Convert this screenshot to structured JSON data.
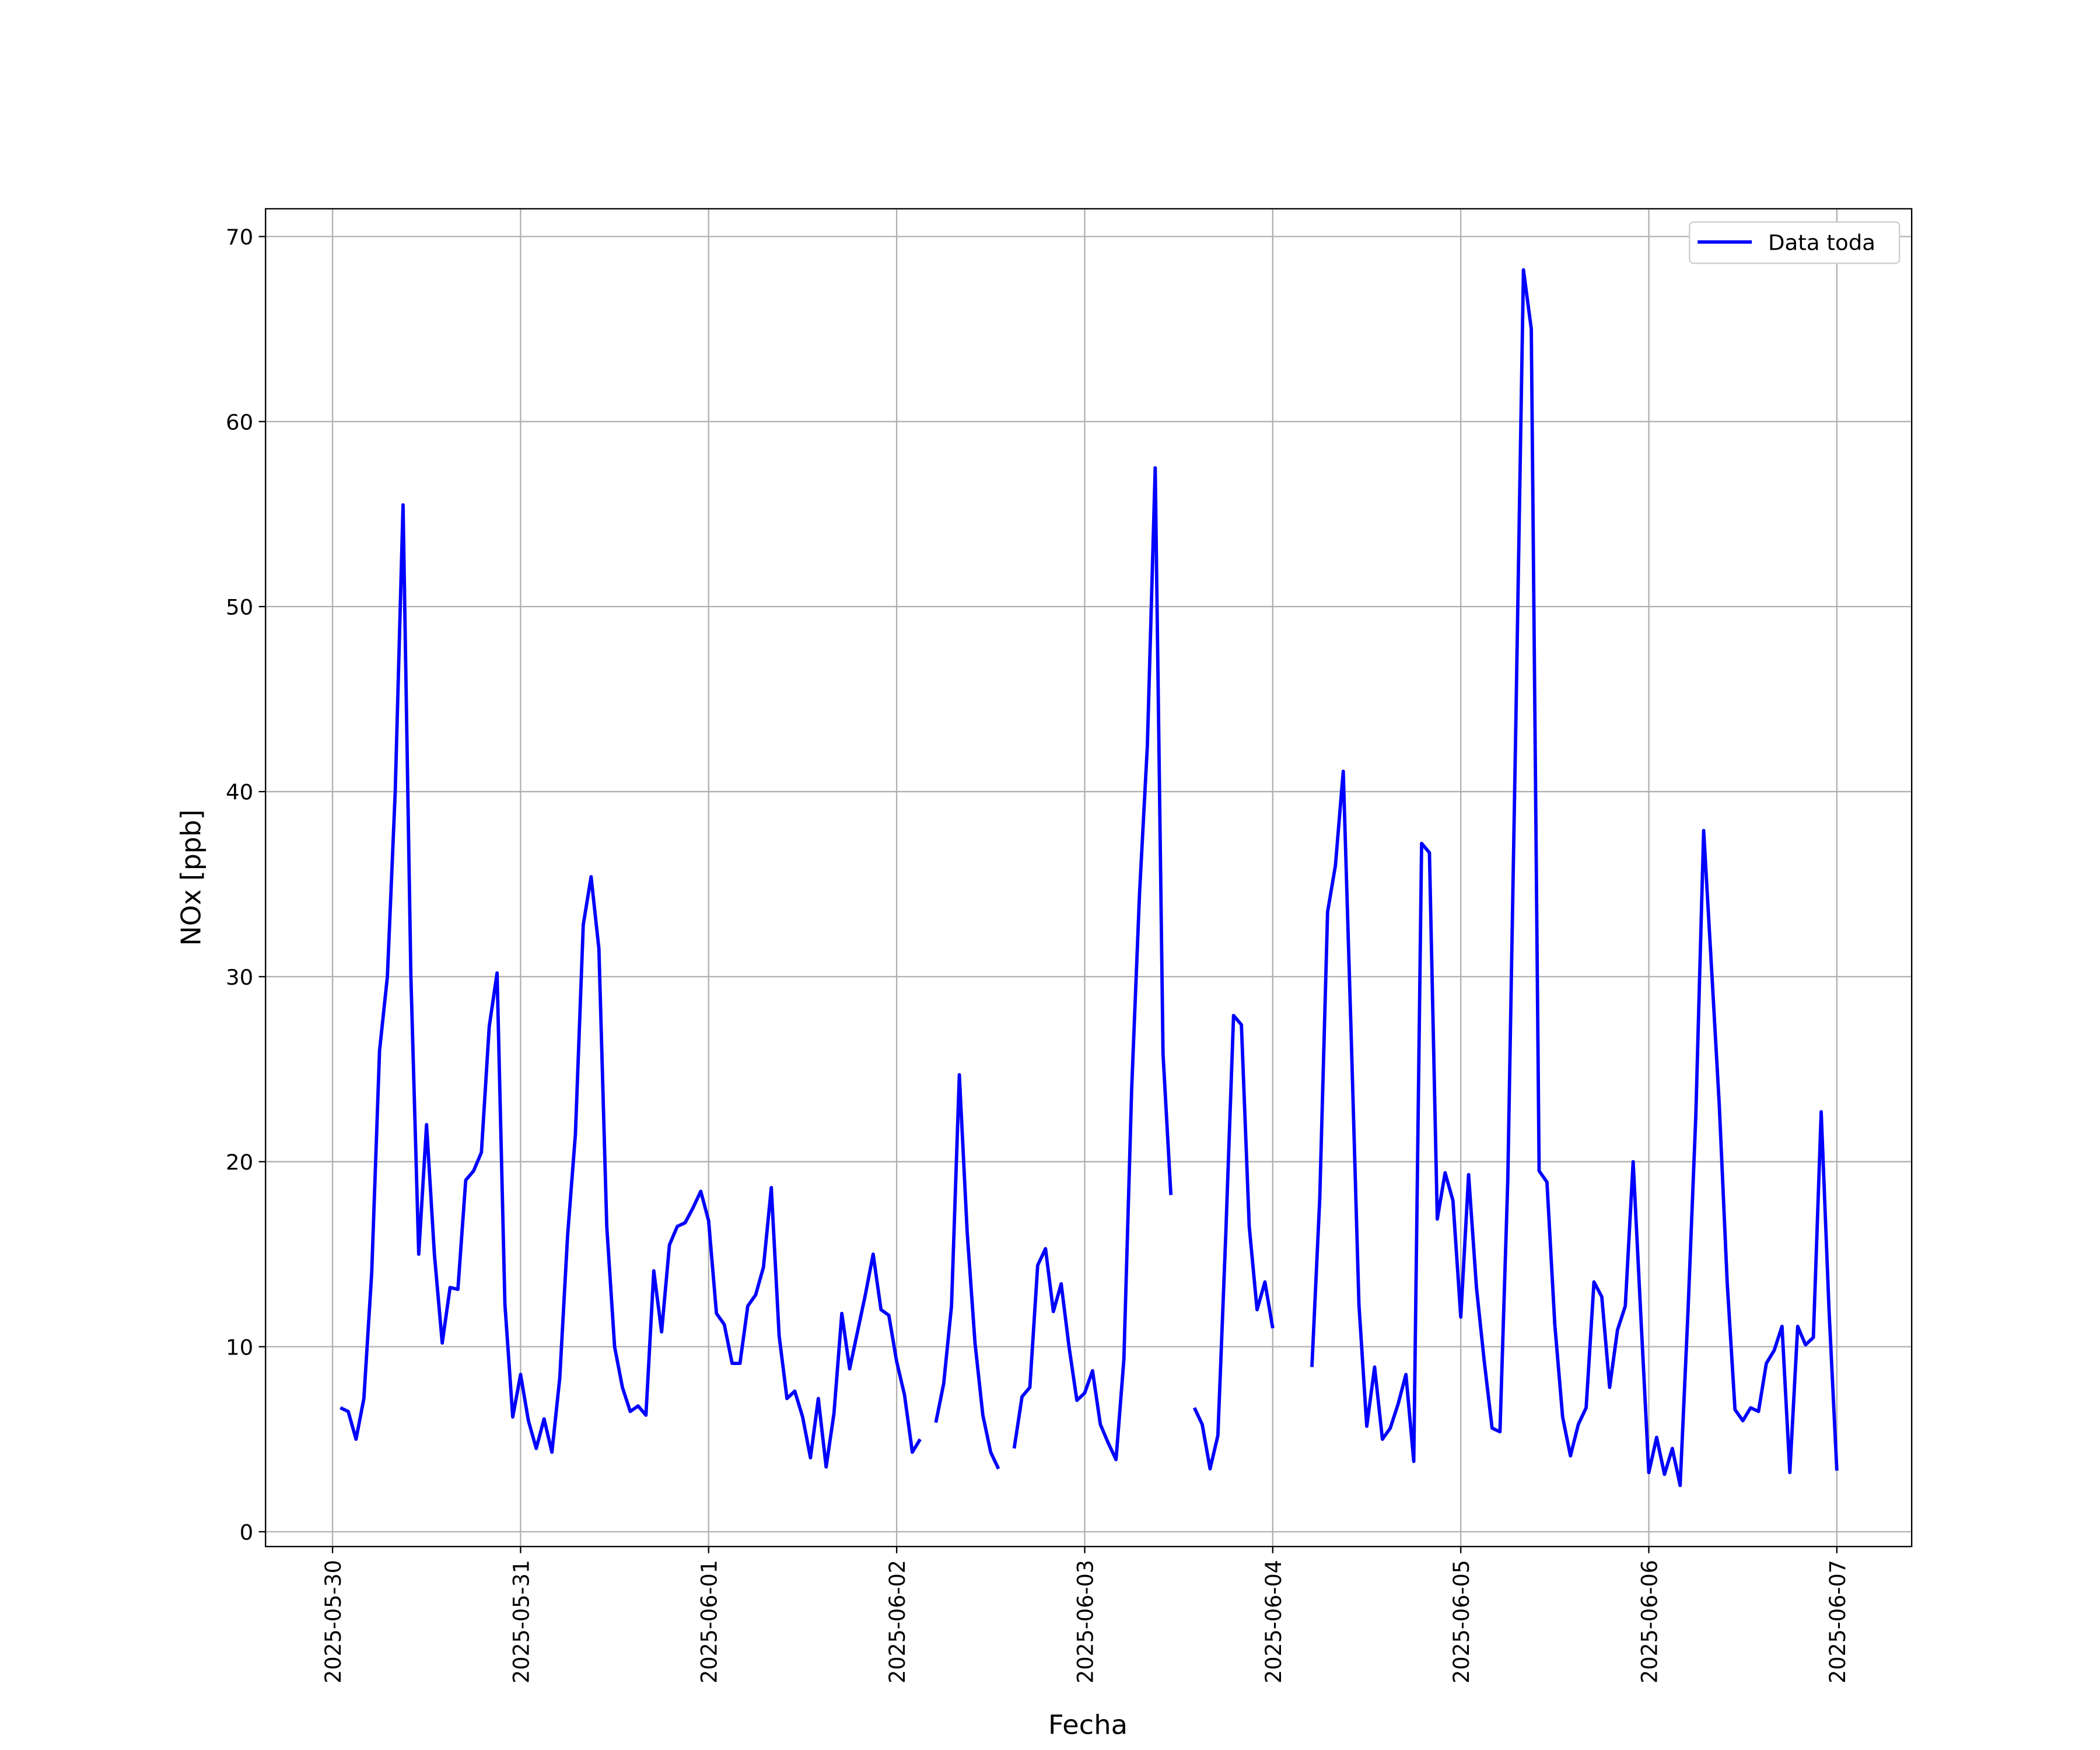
{
  "chart_data": {
    "type": "line",
    "xlabel": "Fecha",
    "ylabel": "NOx [ppb]",
    "x": [
      "2025-05-30T01:00",
      "2025-05-30T02:00",
      "2025-05-30T03:00",
      "2025-05-30T04:00",
      "2025-05-30T05:00",
      "2025-05-30T06:00",
      "2025-05-30T07:00",
      "2025-05-30T08:00",
      "2025-05-30T09:00",
      "2025-05-30T10:00",
      "2025-05-30T11:00",
      "2025-05-30T12:00",
      "2025-05-30T13:00",
      "2025-05-30T14:00",
      "2025-05-30T15:00",
      "2025-05-30T16:00",
      "2025-05-30T17:00",
      "2025-05-30T18:00",
      "2025-05-30T19:00",
      "2025-05-30T20:00",
      "2025-05-30T21:00",
      "2025-05-30T22:00",
      "2025-05-30T23:00",
      "2025-05-31T00:00",
      "2025-05-31T01:00",
      "2025-05-31T02:00",
      "2025-05-31T03:00",
      "2025-05-31T04:00",
      "2025-05-31T05:00",
      "2025-05-31T06:00",
      "2025-05-31T07:00",
      "2025-05-31T08:00",
      "2025-05-31T09:00",
      "2025-05-31T10:00",
      "2025-05-31T11:00",
      "2025-05-31T12:00",
      "2025-05-31T13:00",
      "2025-05-31T14:00",
      "2025-05-31T15:00",
      "2025-05-31T16:00",
      "2025-05-31T17:00",
      "2025-05-31T18:00",
      "2025-05-31T19:00",
      "2025-05-31T20:00",
      "2025-05-31T21:00",
      "2025-05-31T22:00",
      "2025-05-31T23:00",
      "2025-06-01T00:00",
      "2025-06-01T01:00",
      "2025-06-01T02:00",
      "2025-06-01T03:00",
      "2025-06-01T04:00",
      "2025-06-01T05:00",
      "2025-06-01T06:00",
      "2025-06-01T07:00",
      "2025-06-01T08:00",
      "2025-06-01T09:00",
      "2025-06-01T10:00",
      "2025-06-01T11:00",
      "2025-06-01T12:00",
      "2025-06-01T13:00",
      "2025-06-01T14:00",
      "2025-06-01T15:00",
      "2025-06-01T16:00",
      "2025-06-01T17:00",
      "2025-06-01T18:00",
      "2025-06-01T19:00",
      "2025-06-01T20:00",
      "2025-06-01T21:00",
      "2025-06-01T22:00",
      "2025-06-01T23:00",
      "2025-06-02T00:00",
      "2025-06-02T01:00",
      "2025-06-02T02:00",
      "2025-06-02T03:00",
      "2025-06-02T04:00",
      "2025-06-02T05:00",
      "2025-06-02T06:00",
      "2025-06-02T07:00",
      "2025-06-02T08:00",
      "2025-06-02T09:00",
      "2025-06-02T10:00",
      "2025-06-02T11:00",
      "2025-06-02T12:00",
      "2025-06-02T13:00",
      "2025-06-02T14:00",
      "2025-06-02T15:00",
      "2025-06-02T16:00",
      "2025-06-02T17:00",
      "2025-06-02T18:00",
      "2025-06-02T19:00",
      "2025-06-02T20:00",
      "2025-06-02T21:00",
      "2025-06-02T22:00",
      "2025-06-02T23:00",
      "2025-06-03T00:00",
      "2025-06-03T01:00",
      "2025-06-03T02:00",
      "2025-06-03T03:00",
      "2025-06-03T04:00",
      "2025-06-03T05:00",
      "2025-06-03T06:00",
      "2025-06-03T07:00",
      "2025-06-03T08:00",
      "2025-06-03T09:00",
      "2025-06-03T10:00",
      "2025-06-03T11:00",
      "2025-06-03T12:00",
      "2025-06-03T13:00",
      "2025-06-03T14:00",
      "2025-06-03T15:00",
      "2025-06-03T16:00",
      "2025-06-03T17:00",
      "2025-06-03T18:00",
      "2025-06-03T19:00",
      "2025-06-03T20:00",
      "2025-06-03T21:00",
      "2025-06-03T22:00",
      "2025-06-03T23:00",
      "2025-06-04T00:00",
      "2025-06-04T01:00",
      "2025-06-04T02:00",
      "2025-06-04T03:00",
      "2025-06-04T04:00",
      "2025-06-04T05:00",
      "2025-06-04T06:00",
      "2025-06-04T07:00",
      "2025-06-04T08:00",
      "2025-06-04T09:00",
      "2025-06-04T10:00",
      "2025-06-04T11:00",
      "2025-06-04T12:00",
      "2025-06-04T13:00",
      "2025-06-04T14:00",
      "2025-06-04T15:00",
      "2025-06-04T16:00",
      "2025-06-04T17:00",
      "2025-06-04T18:00",
      "2025-06-04T19:00",
      "2025-06-04T20:00",
      "2025-06-04T21:00",
      "2025-06-04T22:00",
      "2025-06-04T23:00",
      "2025-06-05T00:00",
      "2025-06-05T01:00",
      "2025-06-05T02:00",
      "2025-06-05T03:00",
      "2025-06-05T04:00",
      "2025-06-05T05:00",
      "2025-06-05T06:00",
      "2025-06-05T07:00",
      "2025-06-05T08:00",
      "2025-06-05T09:00",
      "2025-06-05T10:00",
      "2025-06-05T11:00",
      "2025-06-05T12:00",
      "2025-06-05T13:00",
      "2025-06-05T14:00",
      "2025-06-05T15:00",
      "2025-06-05T16:00",
      "2025-06-05T17:00",
      "2025-06-05T18:00",
      "2025-06-05T19:00",
      "2025-06-05T20:00",
      "2025-06-05T21:00",
      "2025-06-05T22:00",
      "2025-06-05T23:00",
      "2025-06-06T00:00",
      "2025-06-06T01:00",
      "2025-06-06T02:00",
      "2025-06-06T03:00",
      "2025-06-06T04:00",
      "2025-06-06T05:00",
      "2025-06-06T06:00",
      "2025-06-06T07:00",
      "2025-06-06T08:00",
      "2025-06-06T09:00",
      "2025-06-06T10:00",
      "2025-06-06T11:00",
      "2025-06-06T12:00",
      "2025-06-06T13:00",
      "2025-06-06T14:00",
      "2025-06-06T15:00",
      "2025-06-06T16:00",
      "2025-06-06T17:00",
      "2025-06-06T18:00",
      "2025-06-06T19:00",
      "2025-06-06T20:00",
      "2025-06-06T21:00",
      "2025-06-06T22:00",
      "2025-06-06T23:00",
      "2025-06-07T00:00"
    ],
    "series": [
      {
        "name": "Data toda",
        "color": "#0000ff",
        "values": [
          6.7,
          6.5,
          5,
          7.2,
          14,
          26,
          30,
          40,
          55.5,
          30,
          15,
          22,
          15,
          10.2,
          13.2,
          13.1,
          19,
          19.5,
          20.5,
          27.3,
          30.2,
          12.3,
          6.2,
          8.5,
          6,
          4.5,
          6.1,
          4.3,
          8.3,
          16,
          21.5,
          32.8,
          35.4,
          31.5,
          16.5,
          10,
          7.8,
          6.5,
          6.8,
          6.3,
          14.1,
          10.8,
          15.5,
          16.5,
          16.7,
          17.5,
          18.4,
          16.8,
          11.8,
          11.2,
          9.1,
          9.1,
          12.2,
          12.8,
          14.3,
          18.6,
          10.6,
          7.2,
          7.6,
          6.2,
          4,
          7.2,
          3.5,
          6.4,
          11.8,
          8.8,
          10.8,
          12.8,
          15,
          12,
          11.7,
          9.2,
          7.4,
          4.3,
          5,
          null,
          5.9,
          8,
          12.2,
          24.7,
          16.2,
          10.2,
          6.3,
          4.3,
          3.4,
          null,
          4.5,
          7.3,
          7.8,
          14.4,
          15.3,
          11.9,
          13.4,
          10,
          7.1,
          7.5,
          8.7,
          5.8,
          4.8,
          3.9,
          9.3,
          24,
          34.5,
          42.5,
          57.5,
          25.8,
          18.2,
          null,
          null,
          6.7,
          5.8,
          3.4,
          5.2,
          16,
          27.9,
          27.4,
          16.5,
          12,
          13.5,
          11,
          null,
          null,
          null,
          null,
          8.9,
          18,
          33.5,
          36,
          41.1,
          27,
          12.3,
          5.7,
          8.9,
          5,
          5.6,
          6.9,
          8.5,
          3.8,
          37.2,
          36.7,
          16.9,
          19.4,
          17.9,
          11.6,
          19.3,
          13.2,
          9.2,
          5.6,
          5.4,
          19,
          43,
          68.2,
          65,
          19.5,
          18.9,
          11.2,
          6.2,
          4.1,
          5.8,
          6.7,
          13.5,
          12.7,
          7.8,
          10.9,
          12.2,
          20,
          11.5,
          3.2,
          5.1,
          3.1,
          4.5,
          2.5,
          11.9,
          22.5,
          37.9,
          30.5,
          23,
          13.5,
          6.6,
          6,
          6.7,
          6.5,
          9.1,
          9.8,
          11.1,
          3.2,
          11.1,
          10.1,
          10.5,
          22.7,
          12,
          3.3
        ]
      }
    ],
    "xlim": [
      "2025-05-29T15:27",
      "2025-06-07T09:33"
    ],
    "xticks": [
      "2025-05-30",
      "2025-05-31",
      "2025-06-01",
      "2025-06-02",
      "2025-06-03",
      "2025-06-04",
      "2025-06-05",
      "2025-06-06",
      "2025-06-07"
    ],
    "ylim": [
      -0.8,
      71.5
    ],
    "yticks": [
      0,
      10,
      20,
      30,
      40,
      50,
      60,
      70
    ],
    "grid": true,
    "legend": "upper right"
  }
}
